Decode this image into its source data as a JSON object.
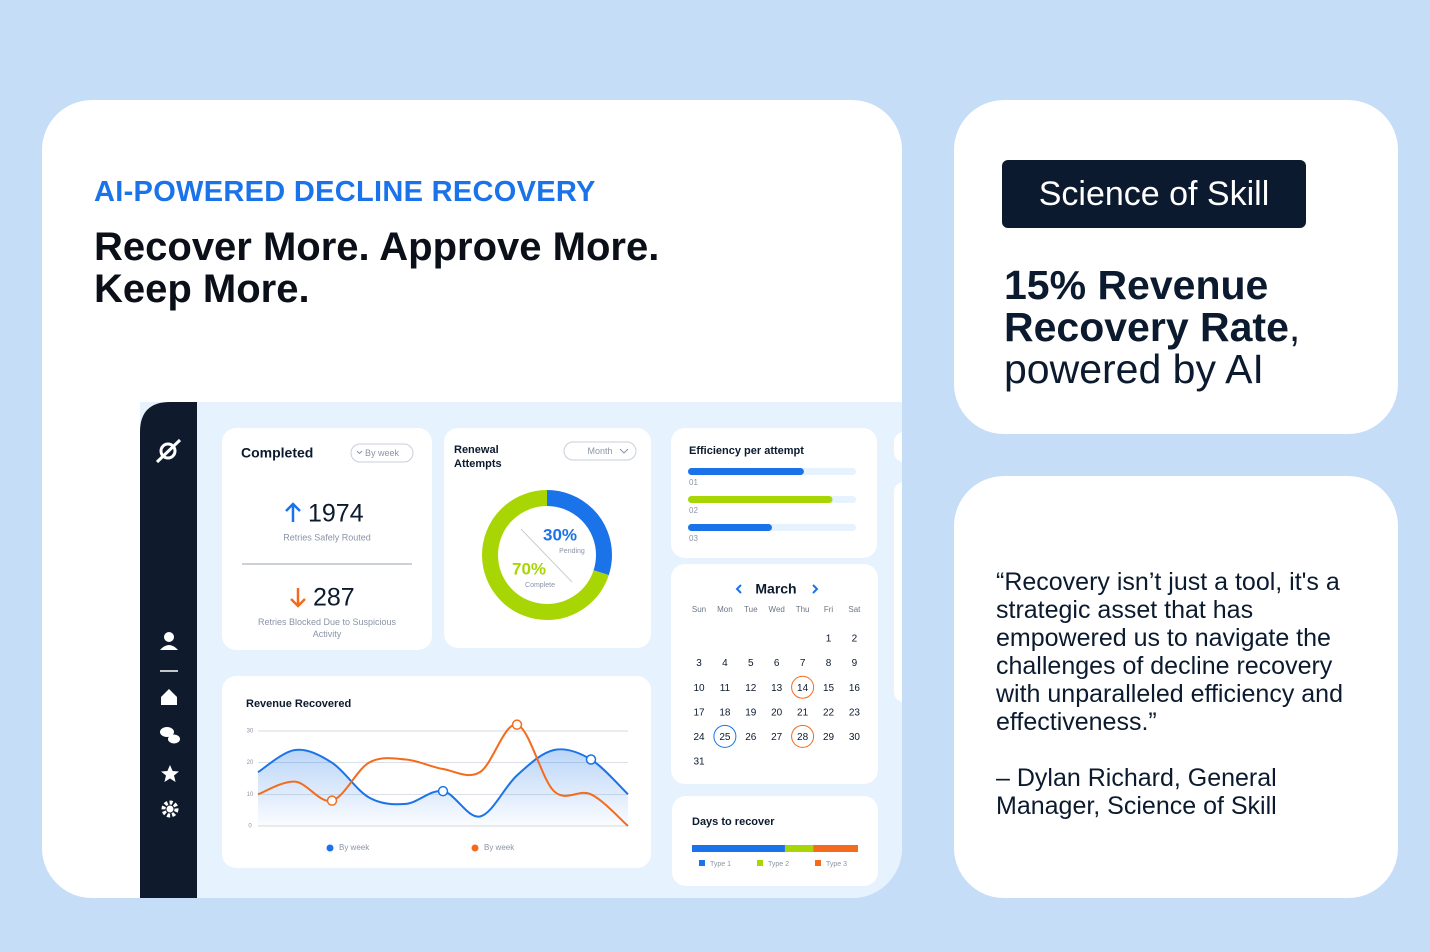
{
  "hero": {
    "eyebrow": "AI-POWERED DECLINE RECOVERY",
    "headline_lines": [
      "Recover More. Approve More.",
      "Keep More."
    ]
  },
  "badge": "Science of Skill",
  "stat": {
    "bold": "15% Revenue Recovery Rate",
    "rest": ", powered by AI"
  },
  "quote": {
    "text": "“Recovery isn’t just a tool, it's a strategic asset that has empowered us to navigate the challenges of decline recovery with unparalleled efficiency and effectiveness.”",
    "attribution": "– Dylan Richard, General Manager, Science of Skill"
  },
  "dashboard": {
    "completed": {
      "title": "Completed",
      "filter": "By week",
      "routed": {
        "value": 1974,
        "label": "Retries Safely Routed"
      },
      "blocked": {
        "value": 287,
        "label": "Retries Blocked Due to Suspicious Activity"
      }
    },
    "renewal": {
      "type": "donut",
      "title": "Renewal Attempts",
      "filter": "Month",
      "categories": [
        "Pending",
        "Complete"
      ],
      "values": [
        30,
        70
      ],
      "value_labels": [
        "30%",
        "70%"
      ],
      "colors": [
        "#1a73e8",
        "#a8d604"
      ]
    },
    "efficiency": {
      "type": "bar",
      "title": "Efficiency per attempt",
      "categories": [
        "01",
        "02",
        "03"
      ],
      "values": [
        69,
        86,
        50
      ],
      "xlim": [
        0,
        100
      ],
      "colors": [
        "#1a73e8",
        "#a8d604",
        "#1a73e8"
      ]
    },
    "calendar": {
      "month": "March",
      "weekdays": [
        "Sun",
        "Mon",
        "Tue",
        "Wed",
        "Thu",
        "Fri",
        "Sat"
      ],
      "days": [
        1,
        2,
        3,
        4,
        5,
        6,
        7,
        8,
        9,
        10,
        11,
        12,
        13,
        14,
        15,
        16,
        17,
        18,
        19,
        20,
        21,
        22,
        23,
        24,
        25,
        26,
        27,
        28,
        29,
        30,
        31
      ]
    },
    "revenue": {
      "type": "line",
      "title": "Revenue Recovered",
      "ylim": [
        0,
        30
      ],
      "yticks": [
        0,
        10,
        20,
        30
      ],
      "grid": true,
      "series": [
        {
          "name": "By week",
          "color": "#1a73e8",
          "values": [
            17,
            24,
            20,
            9,
            7,
            11,
            3,
            16,
            24,
            21,
            10
          ]
        },
        {
          "name": "By week",
          "color": "#f36b1c",
          "values": [
            10,
            14,
            8,
            20,
            21,
            18,
            17,
            32,
            11,
            10,
            0
          ]
        }
      ]
    },
    "days_to_recover": {
      "type": "stacked bar",
      "title": "Days to recover",
      "xlim": [
        0,
        100
      ],
      "series": [
        {
          "name": "Type 1",
          "color": "#1a73e8",
          "values": [
            56
          ]
        },
        {
          "name": "Type 2",
          "color": "#a8d604",
          "values": [
            17
          ]
        },
        {
          "name": "Type 3",
          "color": "#f36b1c",
          "values": [
            27
          ]
        }
      ]
    }
  }
}
